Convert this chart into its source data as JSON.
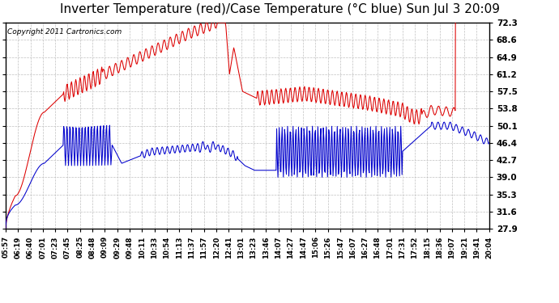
{
  "title": "Inverter Temperature (red)/Case Temperature (°C blue) Sun Jul 3 20:09",
  "copyright": "Copyright 2011 Cartronics.com",
  "yticks": [
    27.9,
    31.6,
    35.3,
    39.0,
    42.7,
    46.4,
    50.1,
    53.8,
    57.5,
    61.2,
    64.9,
    68.6,
    72.3
  ],
  "ymin": 27.9,
  "ymax": 72.3,
  "background_color": "#ffffff",
  "grid_color": "#c0c0c0",
  "red_color": "#dd0000",
  "blue_color": "#0000cc",
  "title_fontsize": 11,
  "xtick_labels": [
    "05:57",
    "06:19",
    "06:40",
    "07:01",
    "07:23",
    "07:45",
    "08:25",
    "08:48",
    "09:09",
    "09:29",
    "09:48",
    "10:11",
    "10:33",
    "10:54",
    "11:13",
    "11:37",
    "11:57",
    "12:20",
    "12:41",
    "13:01",
    "13:23",
    "13:46",
    "14:07",
    "14:27",
    "14:47",
    "15:06",
    "15:26",
    "15:47",
    "16:07",
    "16:27",
    "16:48",
    "17:01",
    "17:31",
    "17:52",
    "18:15",
    "18:36",
    "19:07",
    "19:21",
    "19:41",
    "20:04"
  ]
}
